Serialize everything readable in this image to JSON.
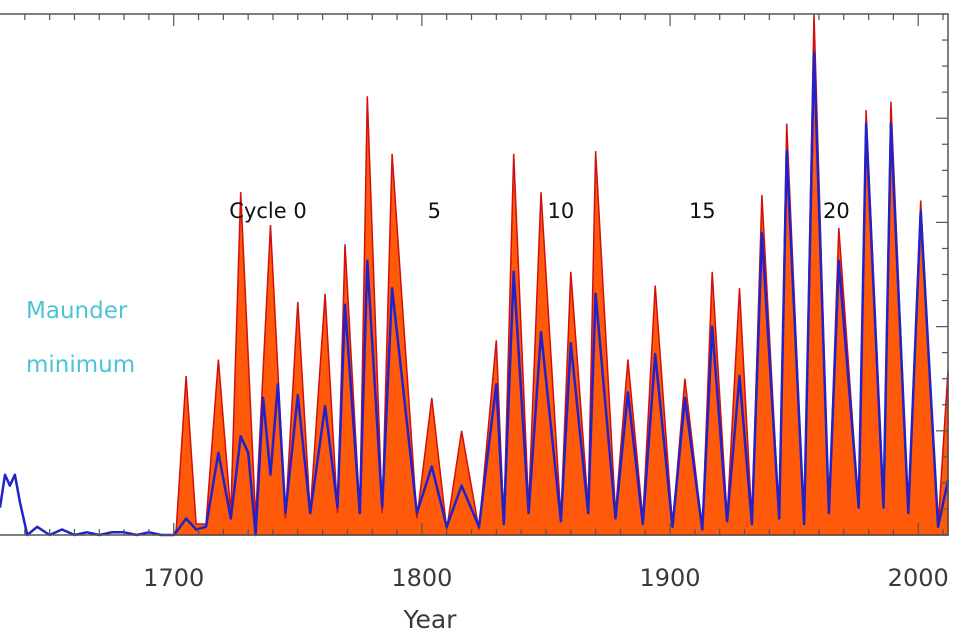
{
  "chart_data": {
    "type": "area",
    "title": "",
    "xlabel": "Year",
    "ylabel": "",
    "xlim": [
      1630,
      2012
    ],
    "ylim": [
      0,
      190
    ],
    "x_ticks": [
      1700,
      1800,
      1900,
      2000
    ],
    "x_tick_labels": [
      "1700",
      "1800",
      "1900",
      "2000"
    ],
    "grid": false,
    "colors": {
      "area": "#ff5a0a",
      "area_edge": "#d01010",
      "line": "#2222c8",
      "maunder": "#4cc3d8"
    },
    "series": [
      {
        "kind": "area",
        "x": [
          1700,
          1701,
          1705,
          1709,
          1713,
          1718,
          1723,
          1727,
          1733,
          1739,
          1745,
          1750,
          1755,
          1761,
          1766,
          1769,
          1775,
          1778,
          1784,
          1788,
          1798,
          1804,
          1810,
          1816,
          1823,
          1830,
          1833,
          1837,
          1843,
          1848,
          1856,
          1860,
          1867,
          1870,
          1878,
          1883,
          1889,
          1894,
          1901,
          1906,
          1913,
          1917,
          1923,
          1928,
          1933,
          1937,
          1944,
          1947,
          1954,
          1958,
          1964,
          1968,
          1976,
          1979,
          1986,
          1989,
          1996,
          2001,
          2008,
          2012
        ],
        "y": [
          0,
          2,
          58,
          4,
          4,
          64,
          8,
          125,
          6,
          113,
          6,
          85,
          8,
          88,
          8,
          106,
          8,
          160,
          8,
          139,
          6,
          50,
          2,
          38,
          2,
          71,
          4,
          139,
          10,
          125,
          6,
          96,
          10,
          140,
          8,
          64,
          6,
          91,
          3,
          57,
          2,
          96,
          6,
          90,
          5,
          124,
          6,
          150,
          4,
          190,
          8,
          112,
          10,
          155,
          12,
          158,
          8,
          122,
          3,
          60
        ]
      },
      {
        "kind": "line",
        "x": [
          1630,
          1632,
          1634,
          1636,
          1638,
          1641,
          1645,
          1650,
          1655,
          1660,
          1665,
          1670,
          1675,
          1680,
          1685,
          1690,
          1695,
          1700,
          1701,
          1705,
          1709,
          1713,
          1718,
          1723,
          1727,
          1730,
          1733,
          1736,
          1739,
          1742,
          1745,
          1750,
          1755,
          1761,
          1766,
          1769,
          1775,
          1778,
          1784,
          1788,
          1798,
          1804,
          1810,
          1816,
          1823,
          1830,
          1833,
          1837,
          1843,
          1848,
          1856,
          1860,
          1867,
          1870,
          1878,
          1883,
          1889,
          1894,
          1901,
          1906,
          1913,
          1917,
          1923,
          1928,
          1933,
          1937,
          1944,
          1947,
          1954,
          1958,
          1964,
          1968,
          1976,
          1979,
          1986,
          1989,
          1996,
          2001,
          2008,
          2012
        ],
        "y": [
          10,
          22,
          18,
          22,
          12,
          0,
          3,
          0,
          2,
          0,
          1,
          0,
          1,
          1,
          0,
          1,
          0,
          0,
          1,
          6,
          2,
          3,
          30,
          6,
          36,
          30,
          0,
          50,
          22,
          55,
          8,
          51,
          8,
          47,
          10,
          84,
          8,
          100,
          10,
          90,
          8,
          25,
          3,
          18,
          3,
          55,
          4,
          96,
          8,
          74,
          5,
          70,
          8,
          88,
          6,
          52,
          4,
          66,
          3,
          50,
          2,
          76,
          5,
          58,
          4,
          110,
          6,
          140,
          4,
          176,
          8,
          100,
          10,
          150,
          10,
          150,
          8,
          118,
          3,
          20
        ]
      }
    ],
    "annotations": [
      {
        "id": "cycle-0",
        "text": "Cycle  0",
        "x": 1738
      },
      {
        "id": "cycle-5",
        "text": "5",
        "x": 1805
      },
      {
        "id": "cycle-10",
        "text": "10",
        "x": 1856
      },
      {
        "id": "cycle-15",
        "text": "15",
        "x": 1913
      },
      {
        "id": "cycle-20",
        "text": "20",
        "x": 1967
      }
    ],
    "region_label": [
      "Maunder",
      "minimum"
    ]
  }
}
